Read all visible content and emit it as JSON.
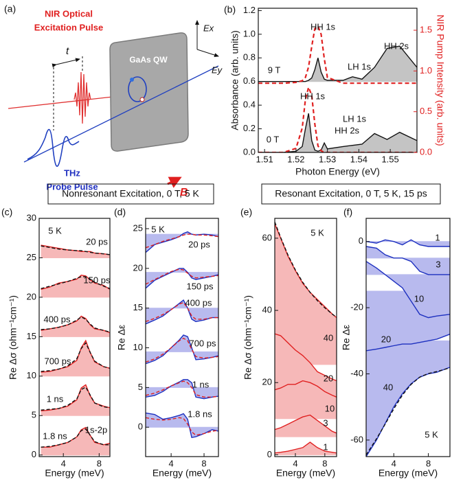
{
  "diagram": {
    "label": "(a)",
    "pump_line1": "NIR Optical",
    "pump_line2": "Excitation Pulse",
    "delay": "t",
    "sample": "GaAs QW",
    "ex_axis": "Ex",
    "ey_axis": "Ey",
    "probe_line1": "THz",
    "probe_line2": "Probe Pulse",
    "field": "B"
  },
  "section_titles": [
    "Nonresonant Excitation, 0 T, 5 K",
    "Resonant Excitation, 0 T, 5 K, 15 ps"
  ],
  "chart_data": [
    {
      "type": "line",
      "label": "(b)",
      "x_label": "Photon Energy (eV)",
      "y_label": "Absorbance (arb. units)",
      "y2_label": "NIR Pump Intensity (arb. units)",
      "xlim": [
        1.508,
        1.5585
      ],
      "xticks": [
        1.51,
        1.52,
        1.53,
        1.54,
        1.55
      ],
      "ylim": [
        0,
        1.22
      ],
      "yticks": [
        {
          "value": 0,
          "label": "0.0"
        },
        0.2,
        0.4,
        0.6,
        0.8,
        {
          "value": 1,
          "label": "1.0"
        },
        1.2
      ],
      "y2lim": [
        0,
        1.77
      ],
      "y2ticks": [
        {
          "value": 0,
          "label": "0.0"
        },
        0.5,
        {
          "value": 1,
          "label": "1.0"
        },
        1.5
      ],
      "y2_color": "#e02020",
      "x": [
        1.508,
        1.512,
        1.516,
        1.52,
        1.522,
        1.523,
        1.524,
        1.525,
        1.526,
        1.527,
        1.528,
        1.529,
        1.53,
        1.535,
        1.538,
        1.541,
        1.545,
        1.549,
        1.553,
        1.5585
      ],
      "series": [
        {
          "name": "9 T",
          "color": "#111111",
          "fill": "#c4c4c4",
          "baseline": 0.6,
          "values": [
            0.6,
            0.6,
            0.6,
            0.6,
            0.6,
            0.6,
            0.61,
            0.63,
            0.7,
            0.8,
            0.68,
            0.62,
            0.61,
            0.61,
            0.64,
            0.62,
            0.72,
            0.88,
            0.9,
            0.72
          ]
        },
        {
          "name": "0 T",
          "color": "#111111",
          "fill": "#c4c4c4",
          "baseline": 0,
          "values": [
            0,
            0,
            0,
            0.01,
            0.05,
            0.2,
            0.33,
            0.1,
            0.02,
            0.01,
            0.02,
            0.08,
            0.03,
            0.05,
            0.06,
            0.07,
            0.16,
            0.11,
            0.17,
            0.1
          ]
        },
        {
          "color": "#e02020",
          "dashed": true,
          "axis": "y2",
          "values": [
            0.85,
            0.85,
            0.85,
            0.86,
            0.88,
            0.92,
            1.05,
            1.3,
            1.52,
            1.55,
            1.45,
            1.15,
            0.92,
            0.85,
            0.85,
            0.85,
            0.85,
            0.85,
            0.85,
            0.85
          ]
        },
        {
          "color": "#e02020",
          "dashed": true,
          "axis": "y2",
          "values": [
            0,
            0,
            0,
            0.05,
            0.3,
            0.65,
            0.8,
            0.7,
            0.35,
            0.08,
            0.02,
            0,
            0,
            0,
            0,
            0,
            0,
            0,
            0,
            0
          ]
        }
      ],
      "annotations": [
        "HH 1s",
        "LH 1s",
        "HH 2s",
        "HH 1s",
        "LH 1s",
        "HH 2s"
      ]
    },
    {
      "type": "line",
      "label": "(c)",
      "x_label": "Energy (meV)",
      "y_label": "Re Δσ (ohm⁻¹cm⁻¹)",
      "xlim": [
        1.3,
        9.2
      ],
      "xticks": [
        4,
        8
      ],
      "ylim": [
        -0.2,
        30
      ],
      "yticks": [
        0,
        5,
        10,
        15,
        20,
        25,
        30
      ],
      "fit_color": "#111111",
      "x": [
        1.5,
        2.5,
        3.5,
        4.5,
        5.5,
        6,
        6.5,
        7,
        7.5,
        8.5,
        9.2
      ],
      "series": [
        {
          "name": "20 ps",
          "color": "#e02020",
          "fill": "#f6b8b8",
          "baseline": 25,
          "values": [
            26.6,
            26.4,
            26.2,
            26.0,
            25.9,
            25.8,
            25.8,
            25.8,
            25.6,
            25.5,
            25.4
          ],
          "fit": [
            26.5,
            26.3,
            26.1,
            26.0,
            25.9,
            25.9,
            25.8,
            25.7,
            25.6,
            25.5,
            25.4
          ]
        },
        {
          "name": "150 ps",
          "color": "#e02020",
          "fill": "#f6b8b8",
          "baseline": 20,
          "values": [
            21,
            21.3,
            21.8,
            22,
            22.3,
            22.8,
            22.7,
            22.2,
            21.8,
            21.5,
            21
          ],
          "fit": [
            21.1,
            21.4,
            21.7,
            22.0,
            22.4,
            22.6,
            22.6,
            22.3,
            21.9,
            21.4,
            21.1
          ]
        },
        {
          "name": "400 ps",
          "color": "#e02020",
          "fill": "#f6b8b8",
          "baseline": 15,
          "values": [
            15.8,
            16,
            16.2,
            16.5,
            17,
            17.6,
            17.3,
            16.5,
            16,
            15.8,
            15.5
          ],
          "fit": [
            15.9,
            16.0,
            16.2,
            16.5,
            17.1,
            17.5,
            17.2,
            16.6,
            16.1,
            15.8,
            15.6
          ]
        },
        {
          "name": "700 ps",
          "color": "#e02020",
          "fill": "#f6b8b8",
          "baseline": 10,
          "values": [
            10.5,
            10.6,
            10.9,
            11.2,
            12,
            13.6,
            14.5,
            13,
            11.8,
            11.2,
            11
          ],
          "fit": [
            10.6,
            10.7,
            10.9,
            11.3,
            12.2,
            13.5,
            14.2,
            13.0,
            11.9,
            11.2,
            11.0
          ]
        },
        {
          "name": "1 ns",
          "color": "#e02020",
          "fill": "#f6b8b8",
          "baseline": 5,
          "values": [
            5.6,
            5.7,
            5.9,
            6.2,
            7,
            8.5,
            8.9,
            7.5,
            6.6,
            6.2,
            6
          ],
          "fit": [
            5.7,
            5.8,
            5.9,
            6.3,
            7.1,
            8.3,
            8.6,
            7.6,
            6.6,
            6.1,
            6.0
          ]
        },
        {
          "name": "1.8 ns",
          "color": "#e02020",
          "fill": "#f6b8b8",
          "baseline": 0,
          "values": [
            1,
            1,
            1.3,
            1.6,
            2.3,
            3.2,
            3.5,
            2.5,
            1.6,
            1.3,
            1.5
          ],
          "fit": [
            1.0,
            1.1,
            1.3,
            1.6,
            2.3,
            3.1,
            3.3,
            2.5,
            1.7,
            1.3,
            1.3
          ]
        }
      ],
      "annotations": [
        "5 K",
        "1s-2p"
      ]
    },
    {
      "type": "line",
      "label": "(d)",
      "x_label": "Energy (meV)",
      "y_label": "Re Δε",
      "xlim": [
        0.9,
        9.75
      ],
      "xticks": [
        4,
        8
      ],
      "ylim": [
        -3.7,
        26.3
      ],
      "yticks": [
        0,
        5,
        10,
        15,
        20,
        25
      ],
      "fit_color": "#e02020",
      "x": [
        0.9,
        2,
        3,
        4,
        5,
        5.5,
        6,
        6.5,
        7,
        8,
        9,
        9.75
      ],
      "series": [
        {
          "name": "20 ps",
          "color": "#1c2fbf",
          "fill": "#b8baee",
          "baseline": 24.3,
          "values": [
            22,
            23,
            23.3,
            23.6,
            24,
            24.4,
            24.6,
            24.3,
            24.2,
            24.3,
            24.2,
            24
          ],
          "fit": [
            22.6,
            23.0,
            23.4,
            23.7,
            24.0,
            24.2,
            24.3,
            24.3,
            24.2,
            24.2,
            24.1,
            24.0
          ]
        },
        {
          "name": "150 ps",
          "color": "#1c2fbf",
          "fill": "#b8baee",
          "baseline": 19.5,
          "values": [
            17.5,
            18.5,
            19,
            19.5,
            20,
            20,
            19.5,
            18.8,
            18.6,
            18.8,
            19,
            19.2
          ],
          "fit": [
            18.0,
            18.6,
            19.1,
            19.6,
            19.9,
            19.8,
            19.4,
            19.0,
            18.8,
            18.9,
            19.0,
            19.1
          ]
        },
        {
          "name": "400 ps",
          "color": "#1c2fbf",
          "fill": "#b8baee",
          "baseline": 15,
          "values": [
            13,
            13.5,
            14,
            14.8,
            15.6,
            16,
            15,
            13.6,
            13.3,
            13.5,
            13.8,
            13.8
          ],
          "fit": [
            13.3,
            13.7,
            14.2,
            14.8,
            15.5,
            15.7,
            15.0,
            14.0,
            13.6,
            13.6,
            13.8,
            13.8
          ]
        },
        {
          "name": "700 ps",
          "color": "#1c2fbf",
          "fill": "#b8baee",
          "baseline": 9.5,
          "values": [
            8,
            8.4,
            9,
            10,
            11,
            11.6,
            11.4,
            10,
            8.5,
            8.6,
            8.8,
            9
          ],
          "fit": [
            8.2,
            8.6,
            9.2,
            10.0,
            10.9,
            11.2,
            10.9,
            9.8,
            8.9,
            8.7,
            8.8,
            8.9
          ]
        },
        {
          "name": "1 ns",
          "color": "#1c2fbf",
          "fill": "#b8baee",
          "baseline": 5,
          "values": [
            3.8,
            4,
            4.5,
            5.2,
            5.7,
            6,
            6,
            5.6,
            3.8,
            3.6,
            3.8,
            3.9
          ],
          "fit": [
            4.0,
            4.3,
            4.7,
            5.2,
            5.6,
            5.8,
            5.6,
            5.0,
            4.1,
            3.8,
            3.8,
            3.9
          ]
        },
        {
          "name": "1.8 ns",
          "color": "#1c2fbf",
          "fill": "#b8baee",
          "baseline": 0,
          "values": [
            1.8,
            1.6,
            1,
            1.2,
            1.5,
            1.7,
            1,
            -1.3,
            -1.2,
            -0.8,
            -0.3,
            -0.5
          ],
          "fit": [
            1.2,
            1.0,
            0.9,
            1.0,
            1.2,
            1.1,
            0.4,
            -0.6,
            -1.0,
            -0.8,
            -0.5,
            -0.4
          ]
        }
      ],
      "annotations": [
        "5 K"
      ]
    },
    {
      "type": "line",
      "label": "(e)",
      "x_label": "Energy (meV)",
      "y_label": "Re Δσ (ohm⁻¹cm⁻¹)",
      "xlim": [
        1.2,
        9.6
      ],
      "xticks": [
        4,
        8
      ],
      "ylim": [
        -0.5,
        65.5
      ],
      "yticks": [
        0,
        20,
        40,
        60
      ],
      "fit_color": "#111111",
      "x": [
        1.2,
        2,
        3,
        4,
        5,
        6,
        7,
        8,
        9,
        9.6
      ],
      "series": [
        {
          "name": "40",
          "color": "#e02020",
          "fill": "#f6b8b8",
          "baseline": 25,
          "values": [
            64,
            60,
            55,
            51,
            47.5,
            45,
            43,
            41,
            39,
            38
          ],
          "fit": [
            64.5,
            60.2,
            55.3,
            51.2,
            47.8,
            45.0,
            42.7,
            40.7,
            39.0,
            38.1
          ]
        },
        {
          "name": "20",
          "color": "#e02020",
          "fill": "#f6b8b8",
          "baseline": 15,
          "values": [
            33.5,
            33,
            31,
            29,
            27.5,
            25.5,
            23,
            22,
            21,
            20.5
          ]
        },
        {
          "name": "10",
          "color": "#e02020",
          "fill": "#f6b8b8",
          "baseline": 10,
          "values": [
            18,
            18.5,
            19.5,
            19.5,
            20.5,
            20,
            19,
            17.5,
            16.5,
            16
          ]
        },
        {
          "name": "3",
          "color": "#e02020",
          "fill": "#f6b8b8",
          "baseline": 5,
          "values": [
            7,
            7.5,
            8.5,
            9.5,
            10.5,
            11,
            9.5,
            8,
            6.5,
            6
          ]
        },
        {
          "name": "1",
          "color": "#e02020",
          "fill": "#f6b8b8",
          "baseline": 0,
          "values": [
            0.5,
            0.7,
            1,
            1.5,
            2,
            3.5,
            2,
            1,
            0.7,
            0.5
          ]
        }
      ],
      "annotations": [
        "5 K"
      ]
    },
    {
      "type": "line",
      "label": "(f)",
      "x_label": "Energy (meV)",
      "y_label": "Re Δε",
      "xlim": [
        0.8,
        10.5
      ],
      "xticks": [
        4,
        8
      ],
      "ylim": [
        -65,
        7
      ],
      "yticks": [
        -60,
        -40,
        -20,
        0
      ],
      "fit_color": "#111111",
      "x": [
        0.8,
        2,
        3,
        4,
        5,
        6,
        7,
        8,
        9,
        10.5
      ],
      "series": [
        {
          "name": "1",
          "color": "#1c2fbf",
          "fill": "#b8baee",
          "baseline": 0,
          "values": [
            0,
            -0.5,
            0.5,
            0,
            -1,
            0.5,
            -1,
            -1.5,
            -1.5,
            -1.5
          ]
        },
        {
          "name": "3",
          "color": "#1c2fbf",
          "fill": "#b8baee",
          "baseline": -5,
          "values": [
            -1.5,
            -2,
            -4,
            -5,
            -5,
            -6,
            -9,
            -10,
            -10,
            -10
          ]
        },
        {
          "name": "10",
          "color": "#1c2fbf",
          "fill": "#b8baee",
          "baseline": -10,
          "values": [
            -6,
            -8,
            -10,
            -12,
            -14,
            -18,
            -22,
            -23,
            -22.5,
            -22
          ]
        },
        {
          "name": "20",
          "color": "#1c2fbf",
          "fill": "#b8baee",
          "baseline": -15,
          "values": [
            -33,
            -32.5,
            -32,
            -31.5,
            -31,
            -31,
            -30.5,
            -30,
            -29.5,
            -28
          ]
        },
        {
          "name": "40",
          "color": "#1c2fbf",
          "fill": "#b8baee",
          "baseline": -30,
          "values": [
            -65,
            -60,
            -55,
            -50,
            -46,
            -43,
            -41,
            -40,
            -39.5,
            -38
          ],
          "fit": [
            -64.5,
            -59.6,
            -55.2,
            -50.6,
            -46.4,
            -43.2,
            -41.0,
            -39.9,
            -39.3,
            -38.2
          ]
        }
      ],
      "annotations": [
        "5 K"
      ]
    }
  ]
}
